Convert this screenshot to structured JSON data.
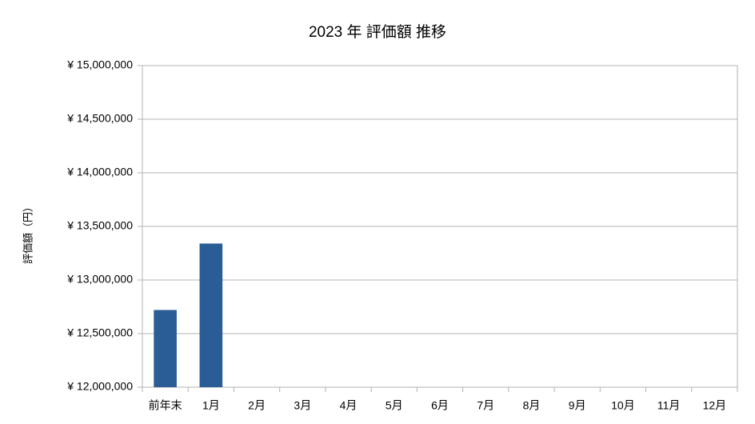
{
  "chart_data": {
    "type": "bar",
    "title": "2023 年 評価額 推移",
    "y_label": "評価額（円）",
    "categories": [
      "前年末",
      "1月",
      "2月",
      "3月",
      "4月",
      "5月",
      "6月",
      "7月",
      "8月",
      "9月",
      "10月",
      "11月",
      "12月"
    ],
    "values": [
      12720000,
      13340000,
      null,
      null,
      null,
      null,
      null,
      null,
      null,
      null,
      null,
      null,
      null
    ],
    "color": "#2a5c96",
    "ylim": [
      12000000,
      15000000
    ],
    "yticks": [
      {
        "value": 12000000,
        "label": "¥ 12,000,000"
      },
      {
        "value": 12500000,
        "label": "¥ 12,500,000"
      },
      {
        "value": 13000000,
        "label": "¥ 13,000,000"
      },
      {
        "value": 13500000,
        "label": "¥ 13,500,000"
      },
      {
        "value": 14000000,
        "label": "¥ 14,000,000"
      },
      {
        "value": 14500000,
        "label": "¥ 14,500,000"
      },
      {
        "value": 15000000,
        "label": "¥ 15,000,000"
      }
    ],
    "grid": true
  }
}
